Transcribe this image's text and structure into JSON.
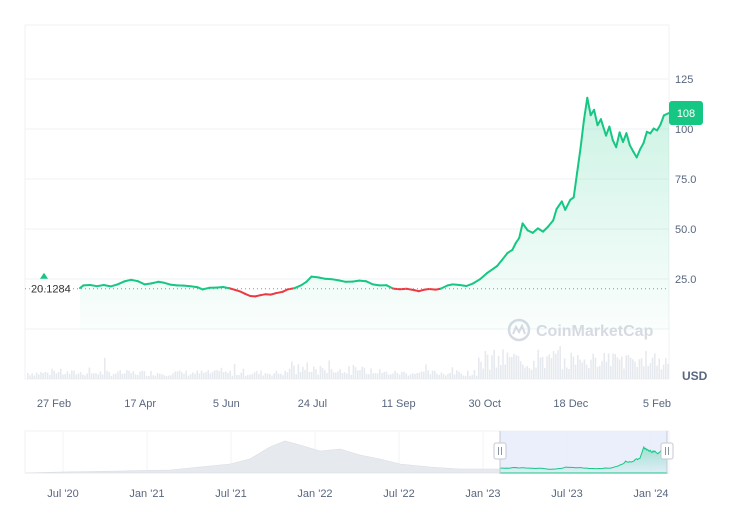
{
  "chart_data": {
    "type": "line",
    "currency": "USD",
    "current_price_label": "108",
    "reference_price_label": "20.1284",
    "reference_price": 20.1284,
    "ylim": [
      0,
      150
    ],
    "y_ticks": [
      {
        "value": 25,
        "label": "25.0"
      },
      {
        "value": 50,
        "label": "50.0"
      },
      {
        "value": 75,
        "label": "75.0"
      },
      {
        "value": 100,
        "label": "100"
      },
      {
        "value": 125,
        "label": "125"
      }
    ],
    "x_tick_labels": [
      "27 Feb",
      "17 Apr",
      "5 Jun",
      "24 Jul",
      "11 Sep",
      "30 Oct",
      "18 Dec",
      "5 Feb"
    ],
    "navigator_labels": [
      "Jul '20",
      "Jan '21",
      "Jul '21",
      "Jan '22",
      "Jul '22",
      "Jan '23",
      "Jul '23",
      "Jan '24"
    ],
    "brand": "CoinMarketCap",
    "colors": {
      "up": "#16c784",
      "down": "#ea3943",
      "grid": "#eff2f5",
      "axis_text": "#58667e",
      "volume": "#e6e9ee",
      "navigator_selection": "#e8ecfb"
    },
    "series": [
      {
        "points": [
          [
            "2023-02-27",
            20.5
          ],
          [
            "2023-03-01",
            21.8
          ],
          [
            "2023-03-05",
            22.0
          ],
          [
            "2023-03-09",
            21.4
          ],
          [
            "2023-03-13",
            22.0
          ],
          [
            "2023-03-17",
            21.3
          ],
          [
            "2023-03-21",
            22.3
          ],
          [
            "2023-03-25",
            23.8
          ],
          [
            "2023-03-29",
            24.6
          ],
          [
            "2023-04-02",
            23.9
          ],
          [
            "2023-04-06",
            22.3
          ],
          [
            "2023-04-10",
            22.8
          ],
          [
            "2023-04-14",
            23.6
          ],
          [
            "2023-04-17",
            23.2
          ],
          [
            "2023-04-21",
            22.2
          ],
          [
            "2023-04-25",
            21.8
          ],
          [
            "2023-04-29",
            21.7
          ],
          [
            "2023-05-03",
            21.4
          ],
          [
            "2023-05-07",
            20.9
          ],
          [
            "2023-05-10",
            19.8
          ],
          [
            "2023-05-14",
            20.6
          ],
          [
            "2023-05-18",
            20.7
          ],
          [
            "2023-05-22",
            21.0
          ],
          [
            "2023-05-26",
            20.3
          ],
          [
            "2023-05-29",
            19.6
          ],
          [
            "2023-06-01",
            18.8
          ],
          [
            "2023-06-04",
            17.6
          ],
          [
            "2023-06-07",
            16.5
          ],
          [
            "2023-06-10",
            16.3
          ],
          [
            "2023-06-13",
            16.9
          ],
          [
            "2023-06-16",
            17.4
          ],
          [
            "2023-06-19",
            17.2
          ],
          [
            "2023-06-22",
            17.9
          ],
          [
            "2023-06-26",
            18.6
          ],
          [
            "2023-06-29",
            19.8
          ],
          [
            "2023-07-03",
            20.4
          ],
          [
            "2023-07-07",
            21.9
          ],
          [
            "2023-07-10",
            23.6
          ],
          [
            "2023-07-13",
            26.2
          ],
          [
            "2023-07-17",
            25.8
          ],
          [
            "2023-07-21",
            25.1
          ],
          [
            "2023-07-25",
            24.9
          ],
          [
            "2023-07-29",
            24.3
          ],
          [
            "2023-08-02",
            23.6
          ],
          [
            "2023-08-06",
            23.7
          ],
          [
            "2023-08-10",
            24.2
          ],
          [
            "2023-08-14",
            23.9
          ],
          [
            "2023-08-18",
            22.3
          ],
          [
            "2023-08-22",
            21.8
          ],
          [
            "2023-08-26",
            21.9
          ],
          [
            "2023-08-30",
            20.2
          ],
          [
            "2023-09-03",
            19.9
          ],
          [
            "2023-09-07",
            20.1
          ],
          [
            "2023-09-11",
            19.5
          ],
          [
            "2023-09-14",
            18.9
          ],
          [
            "2023-09-17",
            19.6
          ],
          [
            "2023-09-20",
            20.0
          ],
          [
            "2023-09-24",
            19.7
          ],
          [
            "2023-09-27",
            20.2
          ],
          [
            "2023-10-01",
            21.8
          ],
          [
            "2023-10-04",
            22.3
          ],
          [
            "2023-10-08",
            22.0
          ],
          [
            "2023-10-12",
            21.5
          ],
          [
            "2023-10-16",
            22.8
          ],
          [
            "2023-10-20",
            24.9
          ],
          [
            "2023-10-24",
            27.9
          ],
          [
            "2023-10-28",
            30.3
          ],
          [
            "2023-10-30",
            31.5
          ],
          [
            "2023-11-02",
            34.6
          ],
          [
            "2023-11-05",
            37.9
          ],
          [
            "2023-11-08",
            39.6
          ],
          [
            "2023-11-10",
            43.0
          ],
          [
            "2023-11-12",
            45.5
          ],
          [
            "2023-11-14",
            52.8
          ],
          [
            "2023-11-17",
            49.3
          ],
          [
            "2023-11-20",
            48.1
          ],
          [
            "2023-11-23",
            50.3
          ],
          [
            "2023-11-26",
            48.7
          ],
          [
            "2023-11-29",
            51.2
          ],
          [
            "2023-12-02",
            54.3
          ],
          [
            "2023-12-04",
            60.0
          ],
          [
            "2023-12-07",
            63.8
          ],
          [
            "2023-12-09",
            59.6
          ],
          [
            "2023-12-12",
            64.6
          ],
          [
            "2023-12-14",
            65.8
          ],
          [
            "2023-12-16",
            78.1
          ],
          [
            "2023-12-18",
            90.3
          ],
          [
            "2023-12-20",
            104.3
          ],
          [
            "2023-12-22",
            115.6
          ],
          [
            "2023-12-24",
            106.9
          ],
          [
            "2023-12-26",
            109.6
          ],
          [
            "2023-12-28",
            101.9
          ],
          [
            "2023-12-30",
            104.9
          ],
          [
            "2024-01-02",
            96.7
          ],
          [
            "2024-01-04",
            101.2
          ],
          [
            "2024-01-06",
            94.4
          ],
          [
            "2024-01-08",
            90.9
          ],
          [
            "2024-01-10",
            98.3
          ],
          [
            "2024-01-12",
            93.5
          ],
          [
            "2024-01-14",
            97.9
          ],
          [
            "2024-01-16",
            91.9
          ],
          [
            "2024-01-18",
            88.7
          ],
          [
            "2024-01-20",
            85.8
          ],
          [
            "2024-01-22",
            89.8
          ],
          [
            "2024-01-24",
            92.9
          ],
          [
            "2024-01-26",
            98.6
          ],
          [
            "2024-01-28",
            97.8
          ],
          [
            "2024-01-30",
            100.2
          ],
          [
            "2024-02-01",
            99.3
          ],
          [
            "2024-02-03",
            102.2
          ],
          [
            "2024-02-05",
            106.8
          ],
          [
            "2024-02-08",
            108.0
          ]
        ]
      }
    ]
  }
}
